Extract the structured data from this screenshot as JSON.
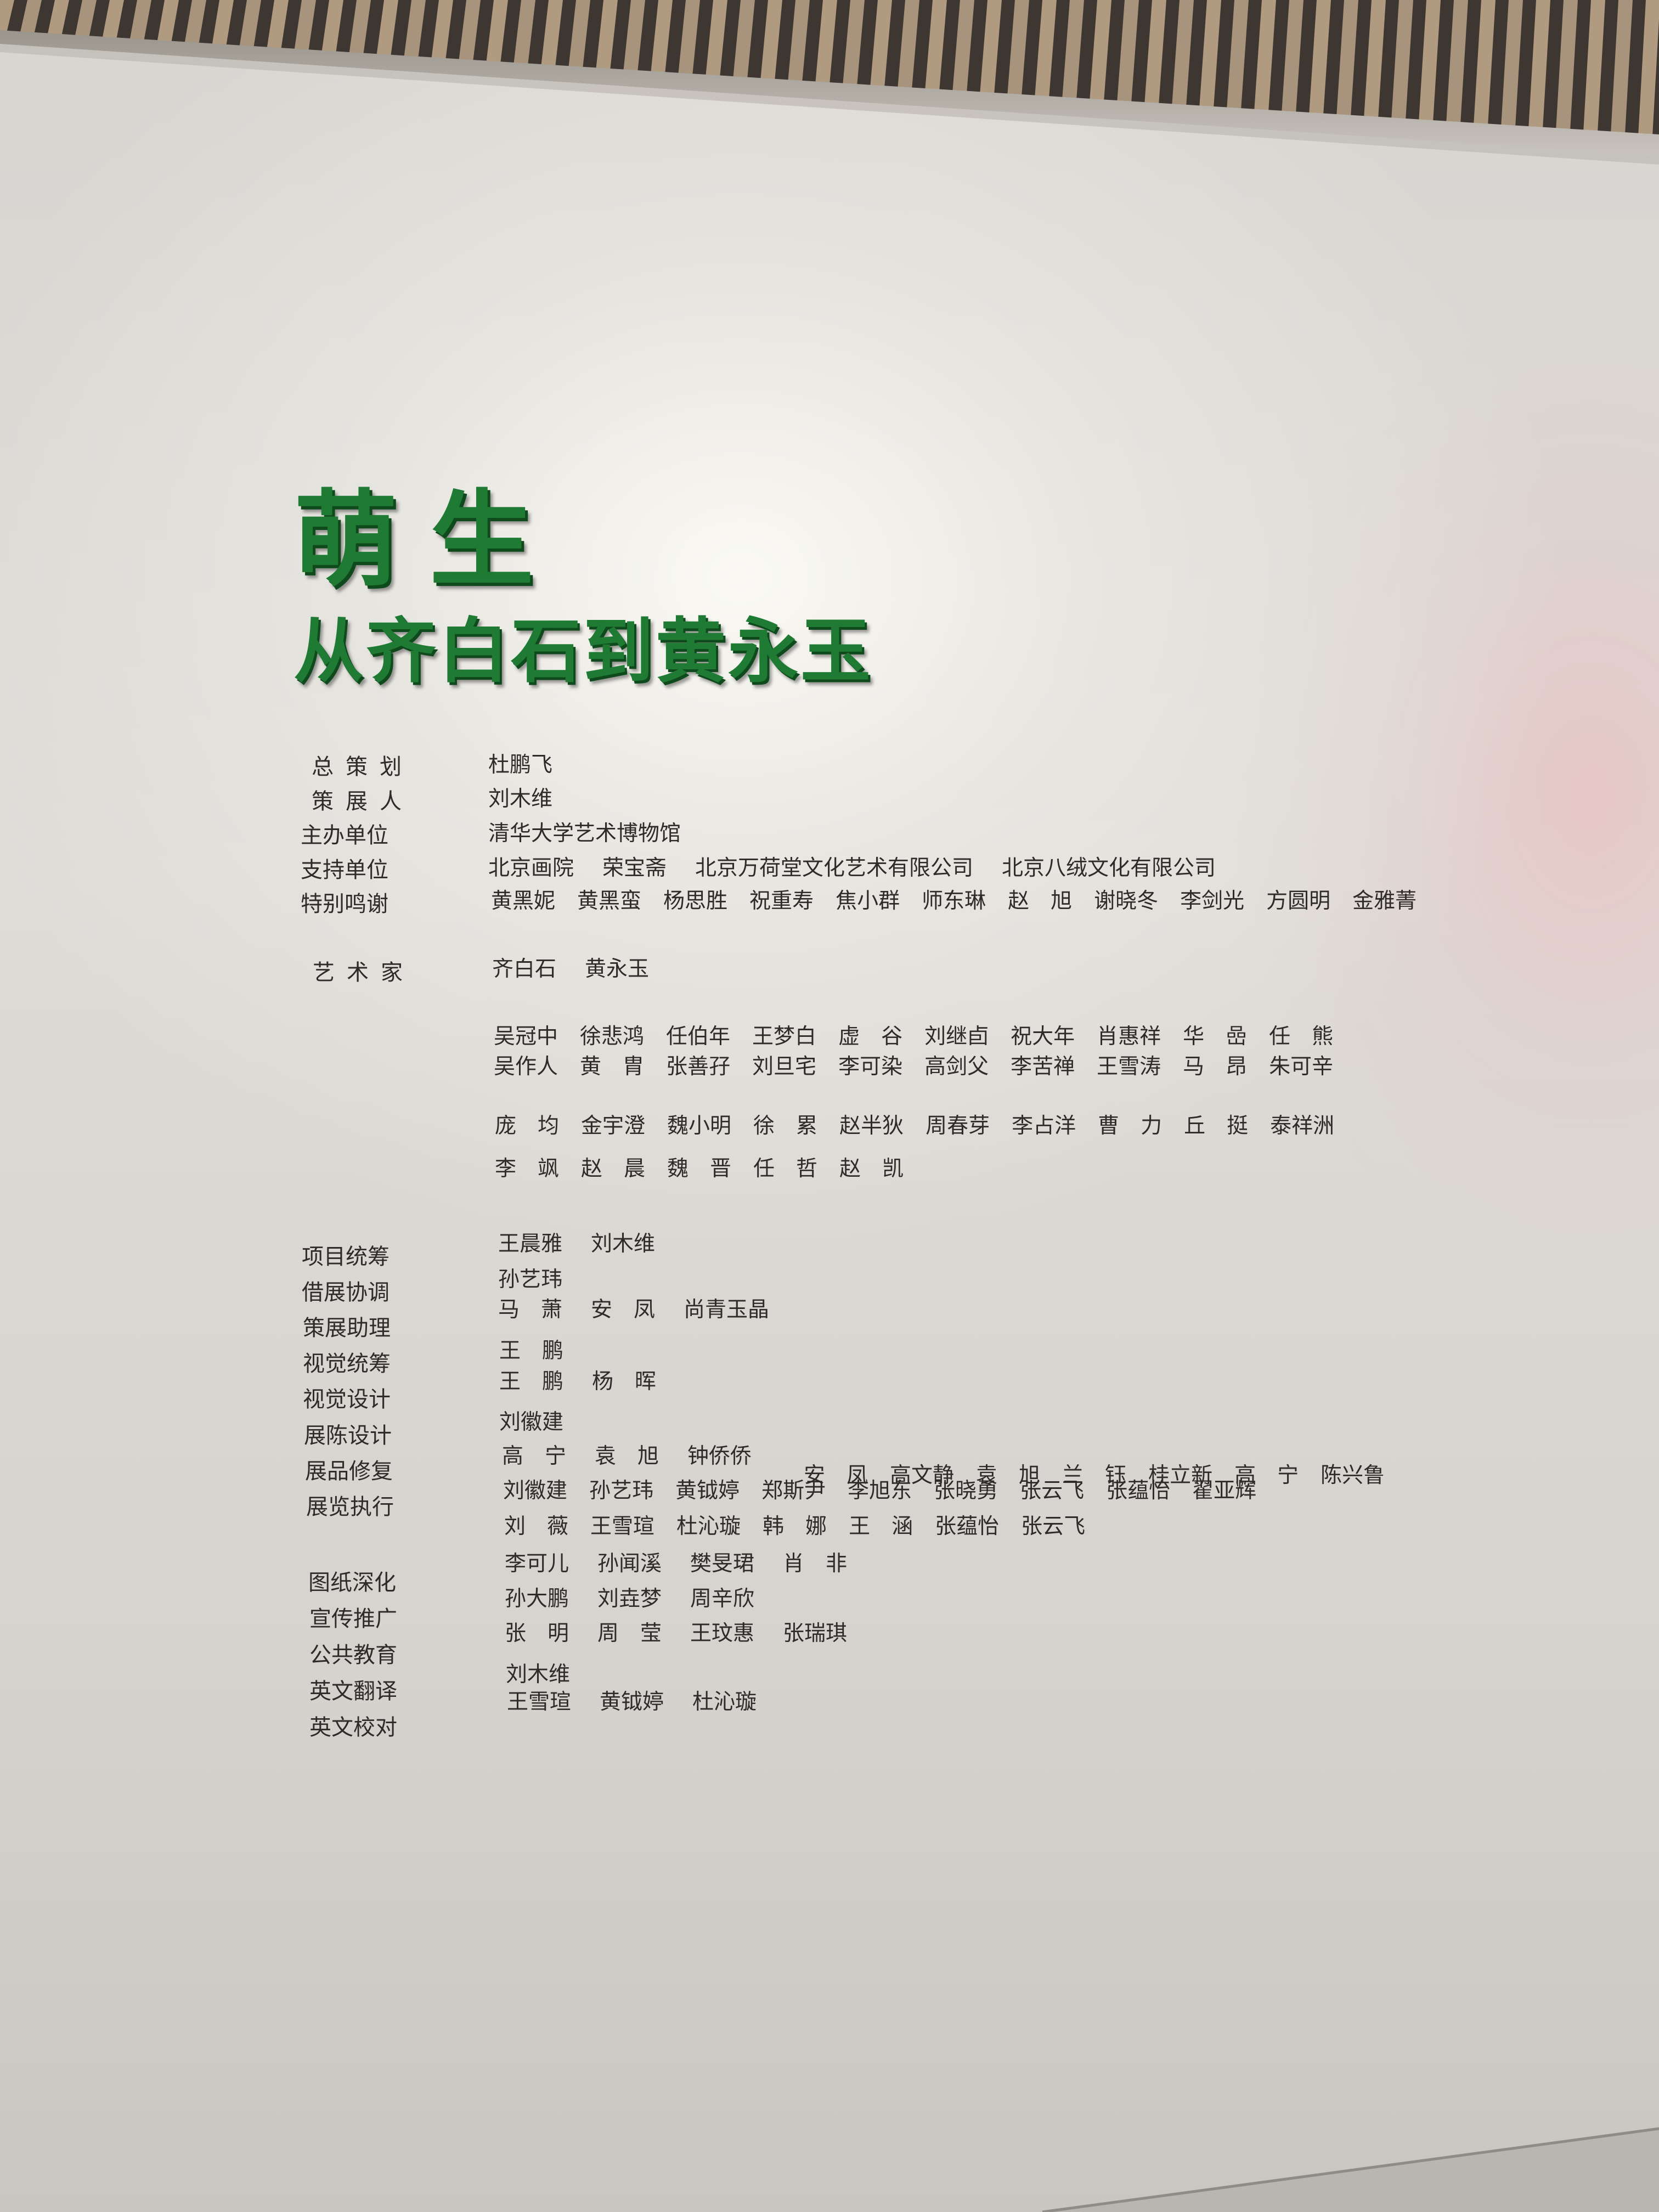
{
  "exhibition": {
    "title": "萌生",
    "subtitle": "从齐白石到黄永玉"
  },
  "credits": {
    "chief_planner": {
      "label": "总策划",
      "names": [
        "杜鹏飞"
      ]
    },
    "curator": {
      "label": "策展人",
      "names": [
        "刘木维"
      ]
    },
    "organizer": {
      "label": "主办单位",
      "names": [
        "清华大学艺术博物馆"
      ]
    },
    "supporters": {
      "label": "支持单位",
      "names": [
        "北京画院",
        "荣宝斋",
        "北京万荷堂文化艺术有限公司",
        "北京八绒文化有限公司"
      ]
    },
    "special_thanks": {
      "label": "特别鸣谢",
      "names": [
        "黄黑妮",
        "黄黑蛮",
        "杨思胜",
        "祝重寿",
        "焦小群",
        "师东琳",
        "赵　旭",
        "谢晓冬",
        "李剑光",
        "方圆明",
        "金雅菁"
      ]
    },
    "artists": {
      "label": "艺术家",
      "group1": [
        "齐白石",
        "黄永玉"
      ],
      "group2_line1": [
        "吴冠中",
        "徐悲鸿",
        "任伯年",
        "王梦白",
        "虚　谷",
        "刘继卣",
        "祝大年",
        "肖惠祥",
        "华　嵒",
        "任　熊"
      ],
      "group2_line2": [
        "吴作人",
        "黄　胄",
        "张善孖",
        "刘旦宅",
        "李可染",
        "高剑父",
        "李苦禅",
        "王雪涛",
        "马　昂",
        "朱可辛"
      ],
      "group3_line1": [
        "庞　均",
        "金宇澄",
        "魏小明",
        "徐　累",
        "赵半狄",
        "周春芽",
        "李占洋",
        "曹　力",
        "丘　挺",
        "泰祥洲"
      ],
      "group3_line2": [
        "李　飒",
        "赵　晨",
        "魏　晋",
        "任　哲",
        "赵　凯"
      ]
    },
    "project_coordination": {
      "label": "项目统筹",
      "names": [
        "王晨雅",
        "刘木维"
      ]
    },
    "loan_coordination": {
      "label": "借展协调",
      "names": [
        "孙艺玮"
      ]
    },
    "curatorial_assistants": {
      "label": "策展助理",
      "names": [
        "马　萧",
        "安　凤",
        "尚青玉晶"
      ]
    },
    "visual_coordination": {
      "label": "视觉统筹",
      "names": [
        "王　鹏"
      ]
    },
    "visual_design": {
      "label": "视觉设计",
      "names": [
        "王　鹏",
        "杨　晖"
      ]
    },
    "display_design": {
      "label": "展陈设计",
      "names": [
        "刘徽建"
      ]
    },
    "restoration": {
      "label": "展品修复",
      "names": [
        "高　宁",
        "袁　旭",
        "钟侨侨"
      ]
    },
    "execution": {
      "label": "展览执行",
      "line0": [
        "安　凤",
        "高文静",
        "袁　旭",
        "兰　钰",
        "桂立新",
        "高　宁",
        "陈兴鲁"
      ],
      "line1": [
        "刘徽建",
        "孙艺玮",
        "黄钺婷",
        "郑斯尹",
        "李旭东",
        "张晓勇",
        "张云飞",
        "张蕴怡",
        "翟亚辉"
      ],
      "line2": [
        "刘　薇",
        "王雪瑄",
        "杜沁璇",
        "韩　娜",
        "王　涵",
        "张蕴怡",
        "张云飞"
      ]
    },
    "drawing_development": {
      "label": "图纸深化",
      "names": [
        "李可儿",
        "孙闻溪",
        "樊旻珺",
        "肖　非"
      ]
    },
    "publicity": {
      "label": "宣传推广",
      "names": [
        "孙大鹏",
        "刘垚梦",
        "周辛欣"
      ]
    },
    "public_education": {
      "label": "公共教育",
      "names": [
        "张　明",
        "周　莹",
        "王玟惠",
        "张瑞琪"
      ]
    },
    "english_translation": {
      "label": "英文翻译",
      "names": [
        "刘木维"
      ]
    },
    "english_proofreading": {
      "label": "英文校对",
      "names": [
        "王雪瑄",
        "黄钺婷",
        "杜沁璇"
      ]
    }
  }
}
